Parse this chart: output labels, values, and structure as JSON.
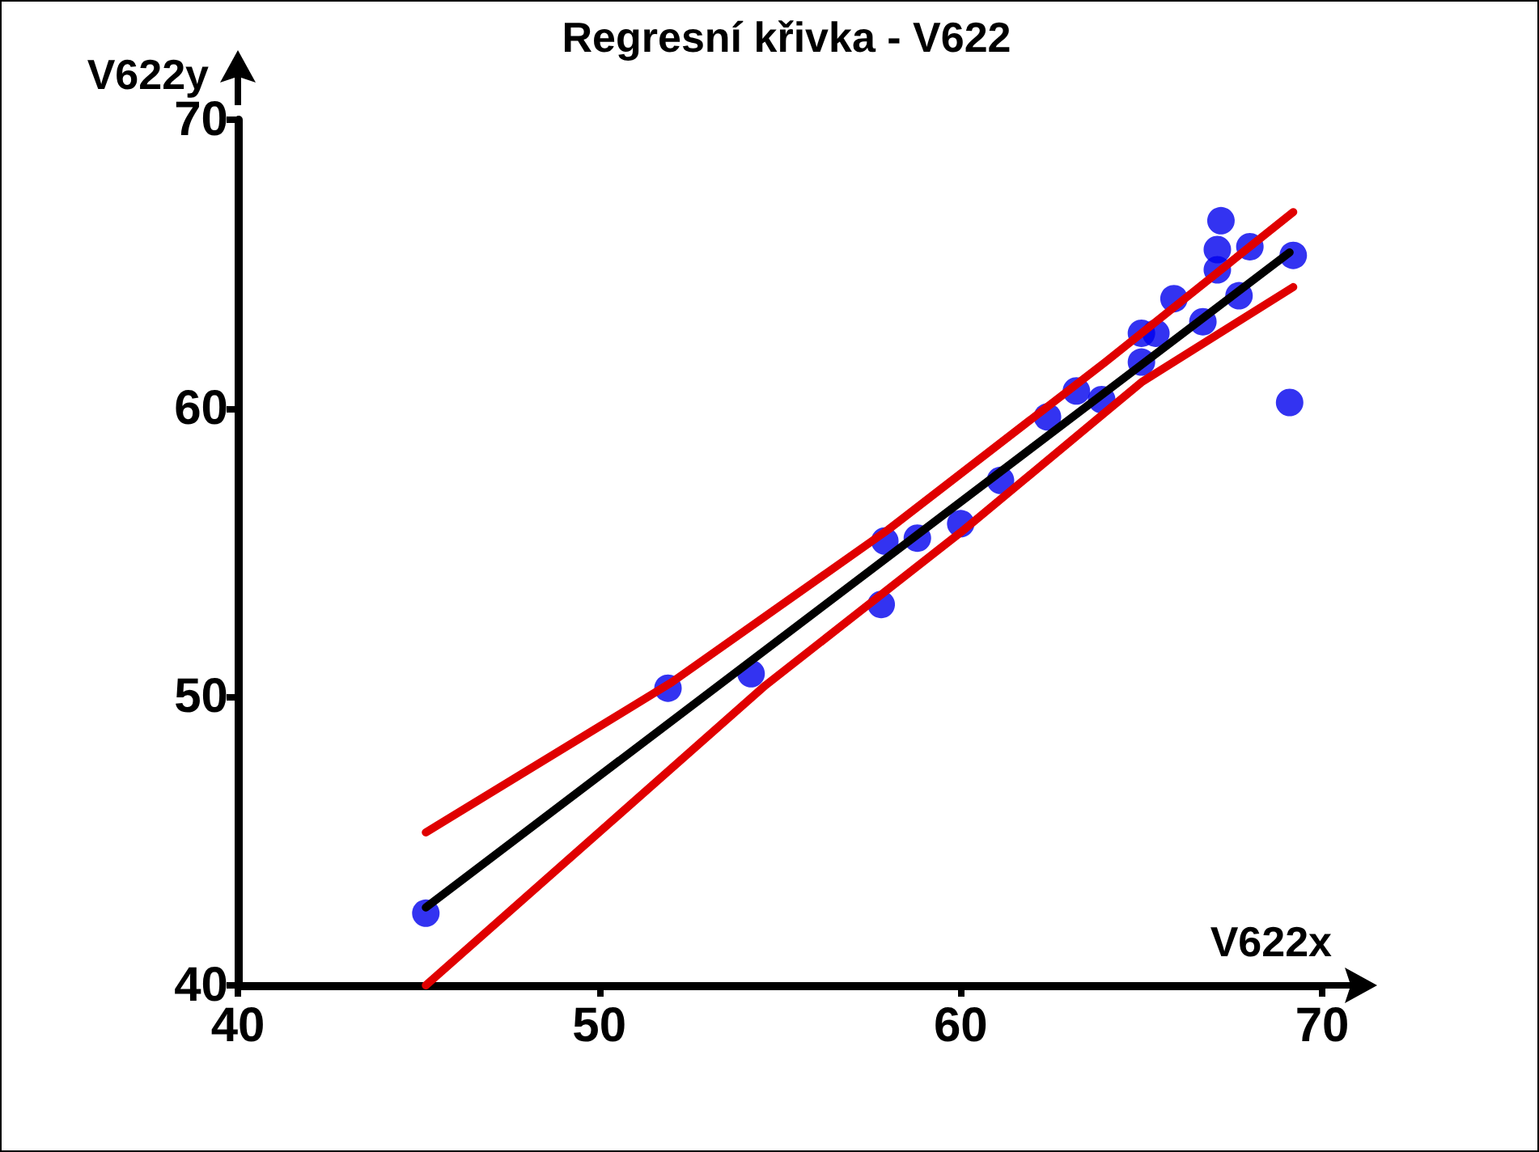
{
  "chart_data": {
    "type": "scatter",
    "title": "Regresní křivka - V622",
    "xlabel": "V622x",
    "ylabel": "V622y",
    "xlim": [
      40,
      70
    ],
    "ylim": [
      40,
      70
    ],
    "xticks": [
      40,
      50,
      60,
      70
    ],
    "yticks": [
      40,
      50,
      60,
      70
    ],
    "grid": false,
    "marker": "circle",
    "series": [
      {
        "color": "#0000ee",
        "x": [
          45.2,
          51.9,
          54.2,
          57.8,
          57.9,
          58.8,
          60.0,
          61.1,
          62.4,
          63.2,
          63.9,
          65.0,
          65.0,
          65.4,
          65.9,
          66.7,
          67.2,
          67.1,
          67.1,
          68.0,
          67.7,
          69.2,
          69.1
        ],
        "values": [
          42.5,
          50.3,
          50.8,
          53.2,
          55.4,
          55.5,
          56.0,
          57.5,
          59.7,
          60.6,
          60.3,
          62.6,
          61.6,
          62.6,
          63.8,
          63.0,
          66.5,
          65.5,
          64.8,
          65.6,
          63.9,
          65.3,
          60.2
        ]
      },
      {
        "type": "line",
        "color": "#000000",
        "marker": "none",
        "line_style": "solid",
        "x": [
          45.2,
          69.1
        ],
        "values": [
          42.7,
          65.4
        ]
      },
      {
        "type": "line",
        "color": "#e00000",
        "marker": "none",
        "line_style": "solid",
        "x": [
          45.2,
          52.0,
          58.0,
          64.0,
          69.2
        ],
        "values": [
          45.3,
          50.5,
          55.8,
          61.6,
          66.8
        ]
      },
      {
        "type": "line",
        "color": "#e00000",
        "marker": "none",
        "line_style": "solid",
        "x": [
          45.2,
          54.6,
          60.0,
          65.0,
          69.2
        ],
        "values": [
          40.0,
          50.4,
          55.7,
          60.9,
          64.2
        ]
      }
    ]
  }
}
